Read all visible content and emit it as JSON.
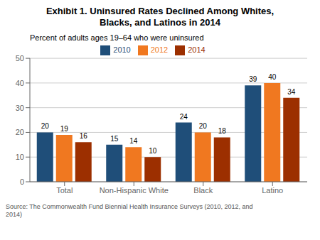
{
  "chart_data": {
    "type": "bar",
    "title": "Exhibit 1. Uninsured Rates Declined Among Whites,\nBlacks, and Latinos in 2014",
    "subtitle": "Percent of adults ages 19–64 who were uninsured",
    "annotations": [
      "Source: The Commonwealth Fund Biennial Health Insurance Surveys (2010, 2012, and\n2014)"
    ],
    "categories": [
      "Total",
      "Non-Hispanic White",
      "Black",
      "Latino"
    ],
    "series": [
      {
        "name": "2010",
        "color": "#1F4E79",
        "values": [
          20,
          15,
          24,
          39
        ]
      },
      {
        "name": "2012",
        "color": "#F07820",
        "values": [
          19,
          14,
          20,
          40
        ]
      },
      {
        "name": "2014",
        "color": "#9C2F00",
        "values": [
          16,
          10,
          18,
          34
        ]
      }
    ],
    "ylim": [
      0,
      50
    ],
    "yticks": [
      0,
      10,
      20,
      30,
      40,
      50
    ],
    "grid": true,
    "legend": "top",
    "data_labels": true
  }
}
